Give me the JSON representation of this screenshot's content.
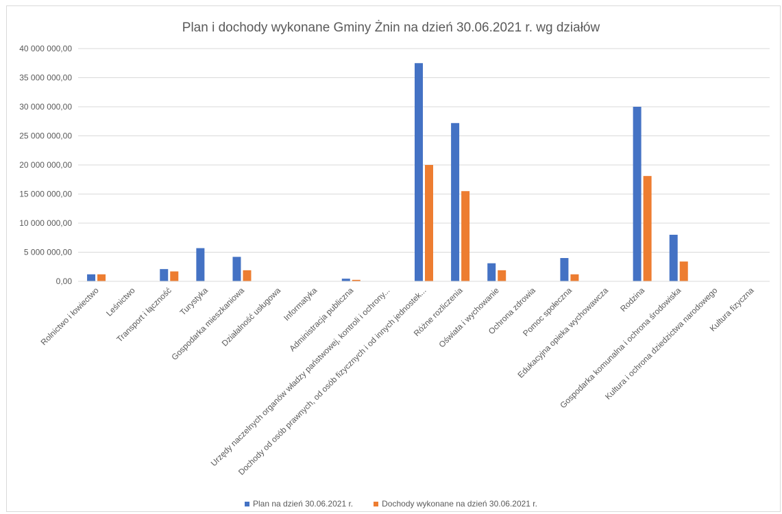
{
  "chart_data": {
    "type": "bar",
    "title": "Plan i dochody wykonane Gminy Żnin na dzień 30.06.2021 r. wg działów",
    "categories": [
      "Rolnictwo i łowiectwo",
      "Leśnictwo",
      "Transport i łączność",
      "Turystyka",
      "Gospodarka mieszkaniowa",
      "Działalność usługowa",
      "Informatyka",
      "Administracja publiczna",
      "Urzędy naczelnych organów władzy państwowej, kontroli i ochrony...",
      "Dochody od osób prawnych, od osób fizycznych i od innych jednostek...",
      "Różne rozliczenia",
      "Oświata i wychowanie",
      "Ochrona zdrowia",
      "Pomoc społeczna",
      "Edukacyjna opieka wychowawcza",
      "Rodzina",
      "Gospodarka komunalna i ochrona środowiska",
      "Kultura i ochrona dziedzictwa narodowego",
      "Kultura fizyczna"
    ],
    "series": [
      {
        "name": "Plan na dzień 30.06.2021 r.",
        "color": "#4472c4",
        "values": [
          1200000,
          10000,
          2100000,
          5700000,
          4200000,
          30000,
          5000,
          450000,
          10000,
          37500000,
          27200000,
          3100000,
          20000,
          4000000,
          40000,
          30000000,
          8000000,
          10000,
          5000
        ]
      },
      {
        "name": "Dochody wykonane na dzień 30.06.2021 r.",
        "color": "#ed7d31",
        "values": [
          1200000,
          5000,
          1700000,
          10000,
          1900000,
          20000,
          2000,
          250000,
          5000,
          20000000,
          15500000,
          1900000,
          10000,
          1200000,
          20000,
          18100000,
          3400000,
          5000,
          2000
        ]
      }
    ],
    "ylim": [
      0,
      40000000
    ],
    "yticks": [
      0,
      5000000,
      10000000,
      15000000,
      20000000,
      25000000,
      30000000,
      35000000,
      40000000
    ],
    "ytick_labels": [
      "0,00",
      "5 000 000,00",
      "10 000 000,00",
      "15 000 000,00",
      "20 000 000,00",
      "25 000 000,00",
      "30 000 000,00",
      "35 000 000,00",
      "40 000 000,00"
    ],
    "grid": true,
    "legend_position": "bottom"
  }
}
